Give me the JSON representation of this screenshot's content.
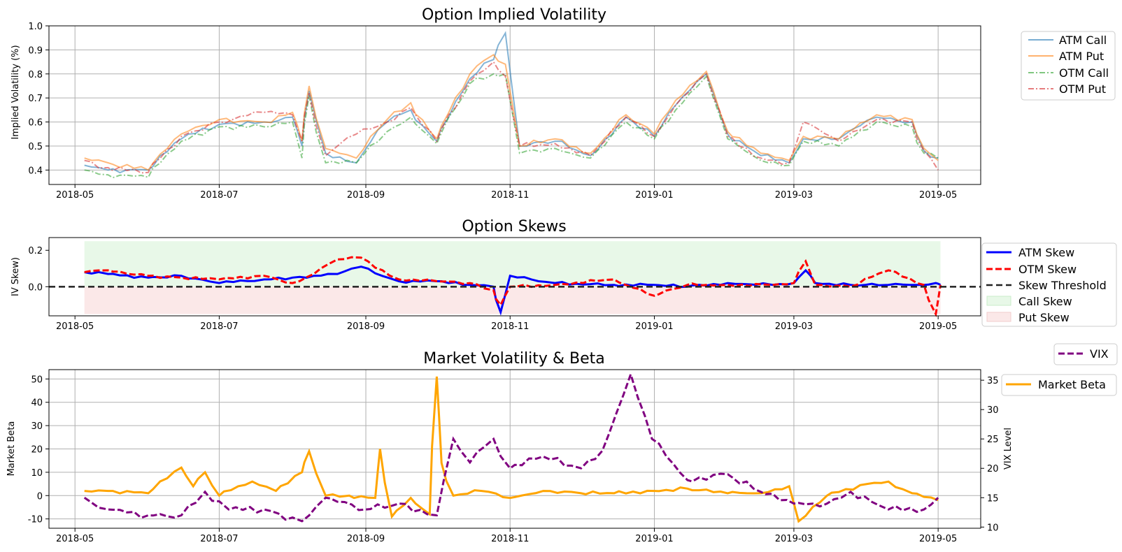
{
  "chart_data": [
    {
      "type": "line",
      "title": "Option Implied Volatility",
      "xlabel": "",
      "ylabel": "Implied Volatility (%)",
      "x_ticks": [
        "2018-05",
        "2018-07",
        "2018-09",
        "2018-11",
        "2019-01",
        "2019-03",
        "2019-05"
      ],
      "xlim": [
        "2018-04-20",
        "2019-05-19"
      ],
      "ylim": [
        0.34,
        1.0
      ],
      "y_ticks": [
        0.4,
        0.5,
        0.6,
        0.7,
        0.8,
        0.9,
        1.0
      ],
      "grid": true,
      "legend_position": "outside-right-top",
      "x": [
        "2018-05-05",
        "2018-05-15",
        "2018-06-01",
        "2018-06-15",
        "2018-07-01",
        "2018-07-20",
        "2018-08-01",
        "2018-08-05",
        "2018-08-08",
        "2018-08-15",
        "2018-08-28",
        "2018-09-10",
        "2018-09-20",
        "2018-10-01",
        "2018-10-15",
        "2018-10-25",
        "2018-10-30",
        "2018-11-05",
        "2018-11-20",
        "2018-12-05",
        "2018-12-20",
        "2019-01-01",
        "2019-01-10",
        "2019-01-23",
        "2019-02-01",
        "2019-02-15",
        "2019-02-27",
        "2019-03-05",
        "2019-03-20",
        "2019-04-05",
        "2019-04-20",
        "2019-04-25",
        "2019-05-01"
      ],
      "series": [
        {
          "name": "ATM Call",
          "color": "#1f77b4",
          "values": [
            0.42,
            0.4,
            0.4,
            0.53,
            0.59,
            0.6,
            0.62,
            0.5,
            0.73,
            0.47,
            0.43,
            0.6,
            0.65,
            0.52,
            0.78,
            0.86,
            0.97,
            0.5,
            0.52,
            0.46,
            0.62,
            0.54,
            0.67,
            0.8,
            0.55,
            0.46,
            0.43,
            0.53,
            0.53,
            0.62,
            0.6,
            0.48,
            0.45
          ]
        },
        {
          "name": "ATM Put",
          "color": "#ff7f0e",
          "values": [
            0.45,
            0.43,
            0.4,
            0.55,
            0.61,
            0.6,
            0.64,
            0.52,
            0.75,
            0.49,
            0.45,
            0.61,
            0.68,
            0.53,
            0.8,
            0.88,
            0.84,
            0.5,
            0.53,
            0.47,
            0.63,
            0.55,
            0.69,
            0.81,
            0.56,
            0.47,
            0.44,
            0.54,
            0.53,
            0.63,
            0.61,
            0.49,
            0.44
          ]
        },
        {
          "name": "OTM Call",
          "color": "#2ca02c",
          "values": [
            0.4,
            0.38,
            0.37,
            0.52,
            0.58,
            0.58,
            0.6,
            0.45,
            0.71,
            0.43,
            0.43,
            0.56,
            0.62,
            0.51,
            0.76,
            0.8,
            0.8,
            0.47,
            0.49,
            0.45,
            0.6,
            0.53,
            0.65,
            0.79,
            0.53,
            0.44,
            0.42,
            0.52,
            0.5,
            0.6,
            0.58,
            0.47,
            0.45
          ]
        },
        {
          "name": "OTM Put",
          "color": "#d62728",
          "values": [
            0.44,
            0.41,
            0.39,
            0.54,
            0.6,
            0.64,
            0.63,
            0.52,
            0.72,
            0.46,
            0.55,
            0.6,
            0.66,
            0.52,
            0.77,
            0.85,
            0.79,
            0.5,
            0.51,
            0.46,
            0.62,
            0.54,
            0.67,
            0.8,
            0.54,
            0.45,
            0.43,
            0.6,
            0.52,
            0.61,
            0.6,
            0.48,
            0.4
          ]
        }
      ]
    },
    {
      "type": "line",
      "title": "Option Skews",
      "xlabel": "",
      "ylabel": "IV Skew)",
      "x_ticks": [
        "2018-05",
        "2018-07",
        "2018-09",
        "2018-11",
        "2019-01",
        "2019-03",
        "2019-05"
      ],
      "xlim": [
        "2018-04-20",
        "2019-05-19"
      ],
      "ylim": [
        -0.16,
        0.27
      ],
      "y_ticks": [
        0.2,
        0.0
      ],
      "grid": false,
      "legend_position": "outside-right",
      "x": [
        "2018-05-05",
        "2018-05-15",
        "2018-06-01",
        "2018-06-15",
        "2018-07-01",
        "2018-07-20",
        "2018-08-01",
        "2018-08-10",
        "2018-08-20",
        "2018-08-30",
        "2018-09-15",
        "2018-10-01",
        "2018-10-15",
        "2018-10-25",
        "2018-10-28",
        "2018-11-01",
        "2018-11-20",
        "2018-12-15",
        "2019-01-01",
        "2019-01-15",
        "2019-02-01",
        "2019-02-20",
        "2019-03-01",
        "2019-03-06",
        "2019-03-10",
        "2019-03-25",
        "2019-04-10",
        "2019-04-25",
        "2019-04-30",
        "2019-05-02"
      ],
      "series": [
        {
          "name": "ATM Skew",
          "color": "#0000ff",
          "style": "solid",
          "values": [
            0.08,
            0.07,
            0.05,
            0.06,
            0.02,
            0.04,
            0.05,
            0.06,
            0.07,
            0.11,
            0.03,
            0.03,
            0.01,
            0.0,
            -0.14,
            0.06,
            0.02,
            0.01,
            0.01,
            0.0,
            0.02,
            0.01,
            0.02,
            0.09,
            0.02,
            0.01,
            0.01,
            0.01,
            0.02,
            0.01
          ]
        },
        {
          "name": "OTM Skew",
          "color": "#ff0000",
          "style": "dashed",
          "values": [
            0.08,
            0.09,
            0.06,
            0.05,
            0.04,
            0.06,
            0.02,
            0.07,
            0.15,
            0.16,
            0.04,
            0.03,
            0.02,
            -0.02,
            -0.1,
            0.0,
            0.01,
            0.04,
            -0.05,
            0.01,
            0.01,
            0.01,
            0.02,
            0.14,
            0.01,
            0.0,
            0.09,
            0.01,
            -0.15,
            0.01
          ]
        }
      ],
      "threshold": {
        "name": "Skew Threshold",
        "value": 0.0,
        "color": "#222222"
      },
      "bands": [
        {
          "name": "Call Skew",
          "from": 0.0,
          "to": 0.25,
          "color": "#e8f8e8"
        },
        {
          "name": "Put Skew",
          "from": -0.15,
          "to": 0.0,
          "color": "#fbe8e8"
        }
      ]
    },
    {
      "type": "line",
      "title": "Market Volatility & Beta",
      "xlabel": "",
      "ylabel": "Market Beta",
      "y2label": "VIX Level",
      "x_ticks": [
        "2018-05",
        "2018-07",
        "2018-09",
        "2018-11",
        "2019-01",
        "2019-03",
        "2019-05"
      ],
      "xlim": [
        "2018-04-20",
        "2019-05-19"
      ],
      "ylim": [
        -14,
        54
      ],
      "y_ticks": [
        50,
        40,
        30,
        20,
        10,
        0,
        -10
      ],
      "y2lim": [
        9.8,
        36.8
      ],
      "y2_ticks": [
        35,
        30,
        25,
        20,
        15,
        10
      ],
      "grid": true,
      "legend_position": "outside-right",
      "beta": {
        "name": "Market Beta",
        "color": "#ffa500",
        "x": [
          "2018-05-05",
          "2018-05-15",
          "2018-06-01",
          "2018-06-15",
          "2018-06-20",
          "2018-06-25",
          "2018-07-01",
          "2018-07-15",
          "2018-07-25",
          "2018-08-05",
          "2018-08-08",
          "2018-08-15",
          "2018-08-25",
          "2018-09-05",
          "2018-09-07",
          "2018-09-12",
          "2018-09-20",
          "2018-09-28",
          "2018-10-01",
          "2018-10-03",
          "2018-10-08",
          "2018-10-20",
          "2018-11-01",
          "2018-11-15",
          "2018-12-01",
          "2018-12-15",
          "2019-01-01",
          "2019-01-15",
          "2019-02-01",
          "2019-02-15",
          "2019-02-27",
          "2019-03-03",
          "2019-03-15",
          "2019-04-01",
          "2019-04-10",
          "2019-04-20",
          "2019-05-01"
        ],
        "values": [
          2,
          2,
          1,
          12,
          4,
          10,
          0,
          6,
          2,
          10,
          19,
          0,
          0,
          -1,
          20,
          -9,
          -1,
          -8,
          51,
          14,
          0,
          2,
          -1,
          2,
          1,
          1,
          2,
          3,
          1,
          1,
          4,
          -11,
          0,
          5,
          6,
          1,
          -2
        ]
      },
      "vix": {
        "name": "VIX",
        "color": "#800080",
        "x": [
          "2018-05-05",
          "2018-05-15",
          "2018-06-01",
          "2018-06-15",
          "2018-06-25",
          "2018-07-05",
          "2018-07-20",
          "2018-08-05",
          "2018-08-15",
          "2018-09-01",
          "2018-09-15",
          "2018-10-01",
          "2018-10-08",
          "2018-10-15",
          "2018-10-25",
          "2018-11-01",
          "2018-11-15",
          "2018-12-01",
          "2018-12-10",
          "2018-12-22",
          "2018-12-31",
          "2019-01-15",
          "2019-02-01",
          "2019-02-15",
          "2019-03-01",
          "2019-03-15",
          "2019-03-25",
          "2019-04-10",
          "2019-04-25",
          "2019-05-01"
        ],
        "values": [
          15,
          13,
          12,
          12,
          16,
          13,
          13,
          11,
          15,
          13,
          14,
          12,
          25,
          21,
          25,
          20,
          22,
          20,
          23,
          36,
          25,
          18,
          19,
          16,
          14,
          14,
          16,
          13,
          13,
          15
        ]
      }
    }
  ]
}
